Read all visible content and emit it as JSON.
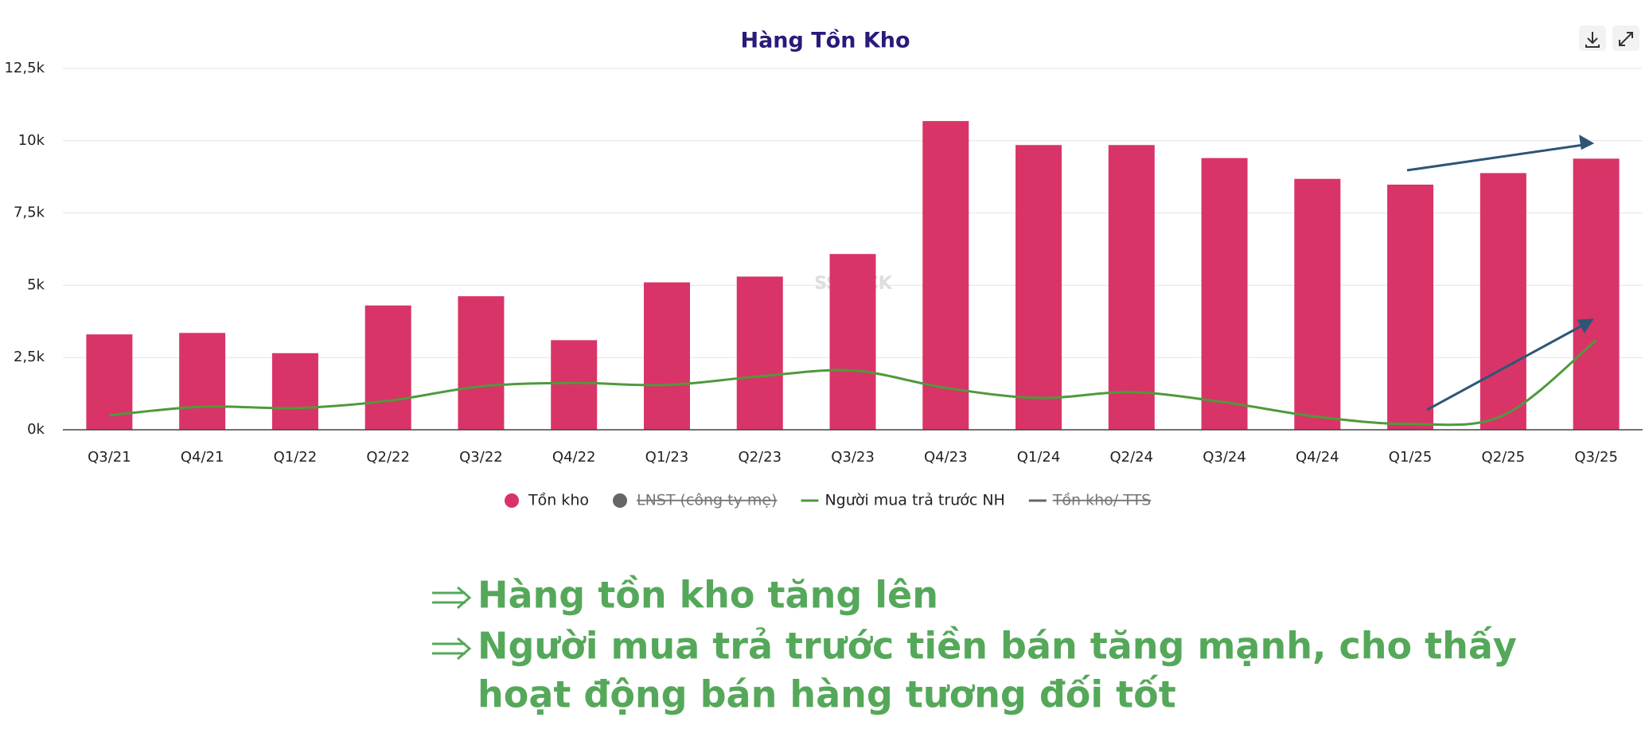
{
  "chart_data": {
    "type": "bar",
    "title": "Hàng Tồn Kho",
    "watermark": "SSTOCK",
    "categories": [
      "Q3/21",
      "Q4/21",
      "Q1/22",
      "Q2/22",
      "Q3/22",
      "Q4/22",
      "Q1/23",
      "Q2/23",
      "Q3/23",
      "Q4/23",
      "Q1/24",
      "Q2/24",
      "Q3/24",
      "Q4/24",
      "Q1/25",
      "Q2/25",
      "Q3/25"
    ],
    "series": [
      {
        "name": "Tồn kho",
        "type": "bar",
        "color": "#d93467",
        "values": [
          3300,
          3350,
          2650,
          4300,
          4620,
          3100,
          5100,
          5300,
          6080,
          10680,
          9850,
          9850,
          9400,
          8680,
          8480,
          8880,
          9380
        ]
      },
      {
        "name": "LNST (công ty mẹ)",
        "type": "bar",
        "color": "#666666",
        "hidden": true
      },
      {
        "name": "Người mua trả trước NH",
        "type": "line",
        "color": "#4e9a3c",
        "values": [
          500,
          800,
          750,
          1000,
          1500,
          1620,
          1550,
          1850,
          2050,
          1450,
          1100,
          1300,
          950,
          450,
          200,
          500,
          3100
        ]
      },
      {
        "name": "Tồn kho/ TTS",
        "type": "line",
        "color": "#555555",
        "hidden": true
      }
    ],
    "ylim": [
      0,
      12500
    ],
    "yticks": [
      {
        "value": 0,
        "label": "0k"
      },
      {
        "value": 2500,
        "label": "2,5k"
      },
      {
        "value": 5000,
        "label": "5k"
      },
      {
        "value": 7500,
        "label": "7,5k"
      },
      {
        "value": 10000,
        "label": "10k"
      },
      {
        "value": 12500,
        "label": "12,5k"
      }
    ],
    "grid": true
  },
  "annotations": [
    "Hàng tồn kho tăng lên",
    "Người mua trả trước tiền bán tăng mạnh, cho thấy",
    "hoạt động bán hàng tương đối tốt"
  ]
}
